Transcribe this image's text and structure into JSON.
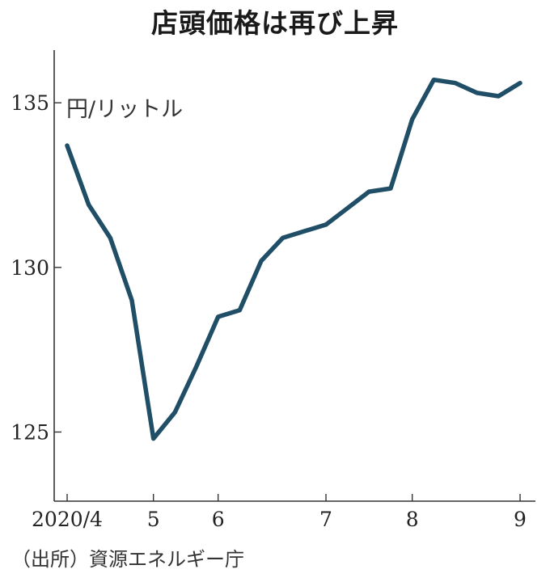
{
  "title": "店頭価格は再び上昇",
  "unit": "円/リットル",
  "source": "（出所）資源エネルギー庁",
  "chart_data": {
    "type": "line",
    "title": "店頭価格は再び上昇",
    "ylabel": "円/リットル",
    "xlabel": "",
    "ylim": [
      122.9,
      136.6
    ],
    "yticks": [
      125,
      130,
      135
    ],
    "grid": false,
    "color": "#1f4e66",
    "x_ticks": [
      {
        "label": "2020/4",
        "at": 0
      },
      {
        "label": "5",
        "at": 4
      },
      {
        "label": "6",
        "at": 7
      },
      {
        "label": "7",
        "at": 12
      },
      {
        "label": "8",
        "at": 16
      },
      {
        "label": "9",
        "at": 21
      }
    ],
    "series": [
      {
        "values": [
          133.7,
          131.9,
          130.9,
          129.0,
          124.8,
          125.6,
          127.0,
          128.5,
          128.7,
          130.2,
          130.9,
          131.1,
          131.3,
          131.8,
          132.3,
          132.4,
          134.5,
          135.7,
          135.6,
          135.3,
          135.2,
          135.6
        ]
      }
    ]
  }
}
